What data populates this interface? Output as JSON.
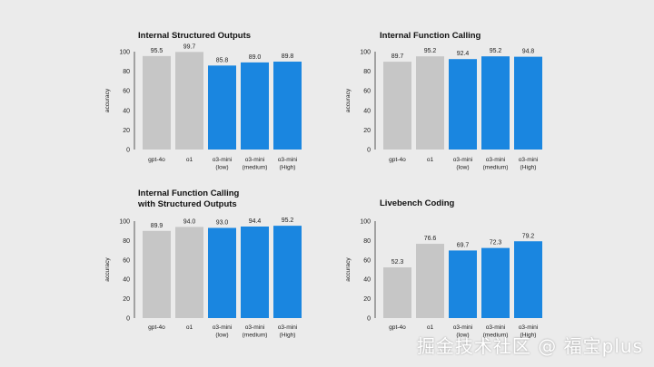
{
  "colors": {
    "gray": "#c6c6c6",
    "blue": "#1a86e0",
    "background": "#ebebeb"
  },
  "watermark": "掘金技术社区 @ 福宝plus",
  "chart_data": [
    {
      "type": "bar",
      "title": [
        "Internal Structured Outputs"
      ],
      "ylabel": "accuracy",
      "ylim": [
        0,
        100
      ],
      "yticks": [
        "0",
        "20",
        "40",
        "60",
        "80",
        "100"
      ],
      "categories": [
        [
          "gpt-4o"
        ],
        [
          "o1"
        ],
        [
          "o3-mini",
          "(low)"
        ],
        [
          "o3-mini",
          "(medium)"
        ],
        [
          "o3-mini",
          "(High)"
        ]
      ],
      "values": [
        95.5,
        99.7,
        85.8,
        89.0,
        89.8
      ],
      "value_labels": [
        "95.5",
        "99.7",
        "85.8",
        "89.0",
        "89.8"
      ],
      "bar_colors": [
        "gray",
        "gray",
        "blue",
        "blue",
        "blue"
      ]
    },
    {
      "type": "bar",
      "title": [
        "Internal Function Calling"
      ],
      "ylabel": "accuracy",
      "ylim": [
        0,
        100
      ],
      "yticks": [
        "0",
        "20",
        "40",
        "60",
        "80",
        "100"
      ],
      "categories": [
        [
          "gpt-4o"
        ],
        [
          "o1"
        ],
        [
          "o3-mini",
          "(low)"
        ],
        [
          "o3-mini",
          "(medium)"
        ],
        [
          "o3-mini",
          "(High)"
        ]
      ],
      "values": [
        89.7,
        95.2,
        92.4,
        95.2,
        94.8
      ],
      "value_labels": [
        "89.7",
        "95.2",
        "92.4",
        "95.2",
        "94.8"
      ],
      "bar_colors": [
        "gray",
        "gray",
        "blue",
        "blue",
        "blue"
      ]
    },
    {
      "type": "bar",
      "title": [
        "Internal Function Calling",
        "with Structured Outputs"
      ],
      "ylabel": "accuracy",
      "ylim": [
        0,
        100
      ],
      "yticks": [
        "0",
        "20",
        "40",
        "60",
        "80",
        "100"
      ],
      "categories": [
        [
          "gpt-4o"
        ],
        [
          "o1"
        ],
        [
          "o3-mini",
          "(low)"
        ],
        [
          "o3-mini",
          "(medium)"
        ],
        [
          "o3-mini",
          "(High)"
        ]
      ],
      "values": [
        89.9,
        94.0,
        93.0,
        94.4,
        95.2
      ],
      "value_labels": [
        "89.9",
        "94.0",
        "93.0",
        "94.4",
        "95.2"
      ],
      "bar_colors": [
        "gray",
        "gray",
        "blue",
        "blue",
        "blue"
      ]
    },
    {
      "type": "bar",
      "title": [
        "Livebench Coding"
      ],
      "ylabel": "accuracy",
      "ylim": [
        0,
        100
      ],
      "yticks": [
        "0",
        "20",
        "40",
        "60",
        "80",
        "100"
      ],
      "categories": [
        [
          "gpt-4o"
        ],
        [
          "o1"
        ],
        [
          "o3-mini",
          "(low)"
        ],
        [
          "o3-mini",
          "(medium)"
        ],
        [
          "o3-mini",
          "(High)"
        ]
      ],
      "values": [
        52.3,
        76.6,
        69.7,
        72.3,
        79.2
      ],
      "value_labels": [
        "52.3",
        "76.6",
        "69.7",
        "72.3",
        "79.2"
      ],
      "bar_colors": [
        "gray",
        "gray",
        "blue",
        "blue",
        "blue"
      ]
    }
  ]
}
